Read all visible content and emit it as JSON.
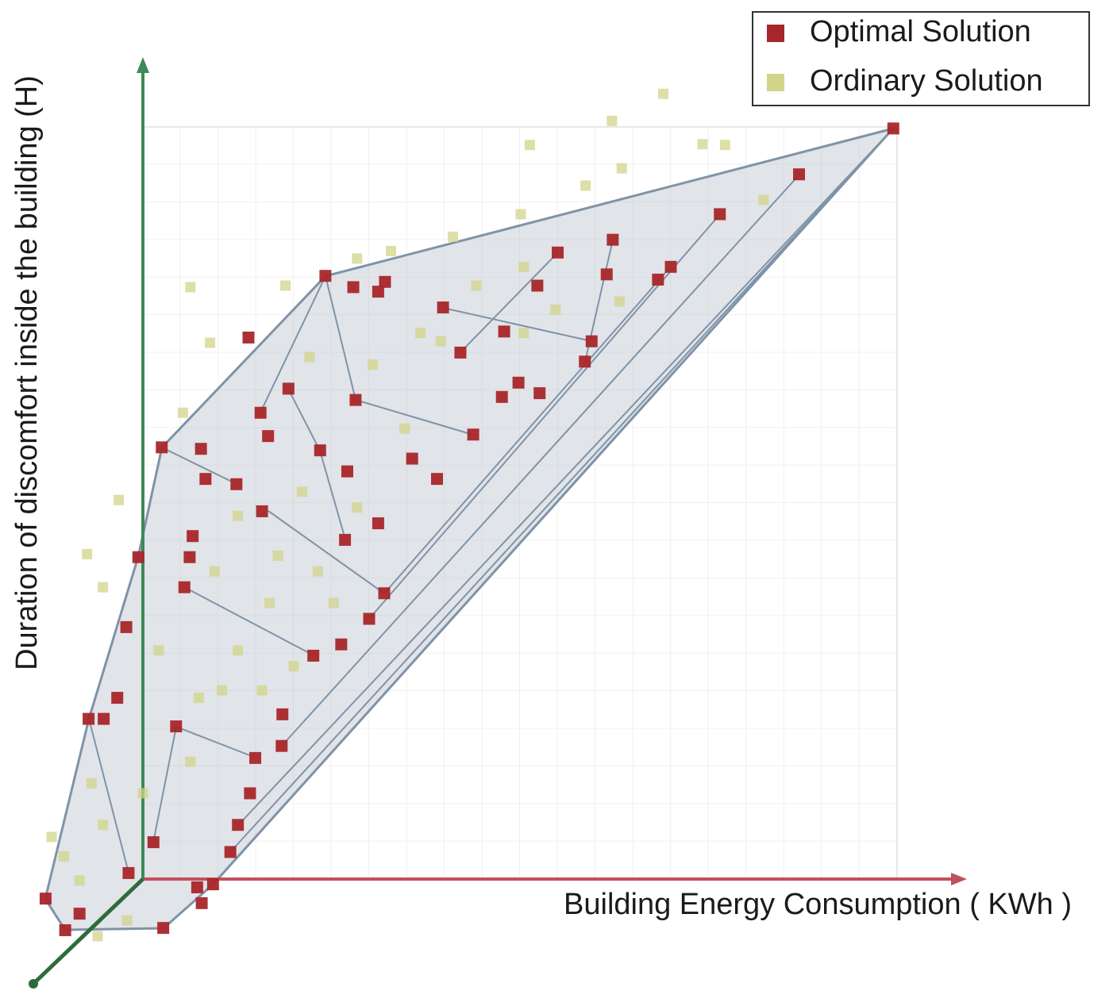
{
  "chart_data": {
    "type": "scatter",
    "x_label": "Building Energy Consumption ( KWh )",
    "y_label": "Duration of discomfort inside the building (H)",
    "xlim": [
      -15,
      110
    ],
    "ylim": [
      -10,
      110
    ],
    "series": [
      {
        "name": "Ordinary Solution",
        "color": "#d2d48a",
        "x": [
          69,
          62.2,
          74.2,
          77.2,
          51.3,
          63.5,
          58.7,
          50.1,
          41.1,
          32.9,
          28.4,
          82.3,
          50.5,
          44.2,
          36.8,
          50.5,
          54.7,
          63.2,
          22.1,
          18.9,
          6.3,
          8.9,
          30.5,
          34.7,
          21.1,
          28.4,
          12.6,
          9.5,
          16.8,
          23.2,
          25.3,
          12.6,
          7.4,
          2.1,
          -5.3,
          -7.4,
          -3.2,
          5.3,
          10.5,
          6.3,
          0,
          -6.8,
          -5.3,
          -12.1,
          -10.5,
          -8.4,
          -6,
          -2.1,
          15.8,
          20,
          17.9,
          39.5
        ],
        "values": [
          104.4,
          100.8,
          97.7,
          97.6,
          97.6,
          94.5,
          92.2,
          88.4,
          85.4,
          83.5,
          82.5,
          90.3,
          81.4,
          78.9,
          72.6,
          72.6,
          75.7,
          76.8,
          69.4,
          78.9,
          78.7,
          71.3,
          68.4,
          59.9,
          51.5,
          49.4,
          48.3,
          40.9,
          36.7,
          40.9,
          36.7,
          30.4,
          24.1,
          30.4,
          38.8,
          43.2,
          50.4,
          62,
          25.1,
          15.6,
          11.4,
          12.7,
          7.2,
          5.6,
          3,
          -0.2,
          -7.6,
          -5.5,
          25.1,
          28.3,
          43,
          71.5
        ]
      },
      {
        "name": "Optimal Solution",
        "color": "#a8262a",
        "x": [
          99.5,
          87,
          76.5,
          70,
          68.3,
          62.3,
          55,
          61.5,
          52.3,
          59.5,
          58.6,
          52.6,
          49.8,
          47.6,
          43.8,
          47.9,
          42.1,
          39.8,
          32.1,
          31.2,
          27.9,
          24.2,
          28.2,
          19.3,
          15.6,
          23.5,
          27.1,
          35.7,
          39,
          31.2,
          26.8,
          32,
          30,
          26.3,
          22.6,
          18.5,
          18.4,
          14.9,
          14.2,
          12.6,
          11.6,
          9.3,
          7.2,
          7.8,
          2.7,
          1.4,
          -1.9,
          -8.4,
          -10.3,
          -12.9,
          -7.2,
          -5.2,
          -3.4,
          -2.2,
          -0.6,
          5.5,
          6.2,
          6.6,
          2.5,
          7.7,
          8.3,
          12.4,
          15.8,
          16.6,
          4.4,
          14
        ],
        "values": [
          99.8,
          93.7,
          88.4,
          81.4,
          79.7,
          85,
          83.3,
          80.4,
          78.9,
          71.5,
          68.8,
          64.6,
          66,
          64.1,
          59.1,
          72.8,
          70,
          76,
          79.4,
          78.1,
          78.7,
          80.2,
          63.7,
          65.2,
          62,
          57,
          54.2,
          55.9,
          53.2,
          47.3,
          45.1,
          38,
          34.6,
          31.2,
          29.7,
          21.9,
          17.7,
          16.1,
          11.4,
          7.2,
          3.6,
          -0.7,
          -1.1,
          -3.2,
          -6.5,
          4.9,
          0.8,
          -4.6,
          -6.8,
          -2.6,
          21.3,
          21.3,
          24.1,
          33.5,
          42.8,
          38.8,
          42.8,
          45.6,
          57.4,
          57.2,
          53.2,
          52.5,
          48.9,
          58.9,
          20.3,
          72
        ]
      }
    ]
  }
}
